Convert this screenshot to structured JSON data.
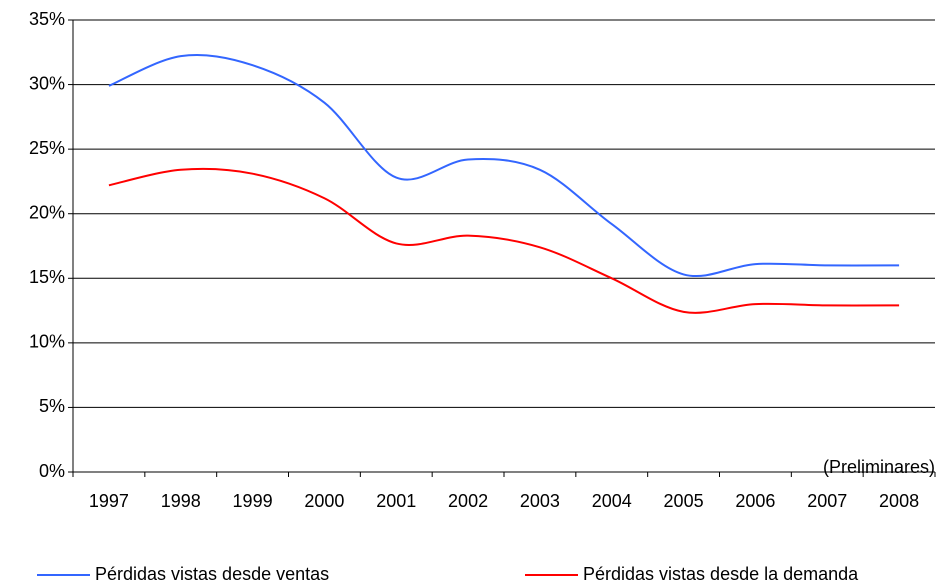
{
  "chart_data": {
    "type": "line",
    "categories": [
      "1997",
      "1998",
      "1999",
      "2000",
      "2001",
      "2002",
      "2003",
      "2004",
      "2005",
      "2006",
      "2007",
      "2008"
    ],
    "series": [
      {
        "name": "Pérdidas vistas desde ventas",
        "color": "#3366ff",
        "values": [
          29.9,
          32.2,
          31.5,
          28.6,
          22.8,
          24.2,
          23.4,
          19.2,
          15.3,
          16.1,
          16.0,
          16.0
        ]
      },
      {
        "name": "Pérdidas vistas desde la demanda",
        "color": "#ff0000",
        "values": [
          22.2,
          23.4,
          23.1,
          21.2,
          17.7,
          18.3,
          17.4,
          15.0,
          12.4,
          13.0,
          12.9,
          12.9
        ]
      }
    ],
    "ylim": [
      0,
      35
    ],
    "yticks": [
      {
        "value": 0,
        "label": "0%"
      },
      {
        "value": 5,
        "label": "5%"
      },
      {
        "value": 10,
        "label": "10%"
      },
      {
        "value": 15,
        "label": "15%"
      },
      {
        "value": 20,
        "label": "20%"
      },
      {
        "value": 25,
        "label": "25%"
      },
      {
        "value": 30,
        "label": "30%"
      },
      {
        "value": 35,
        "label": "35%"
      }
    ],
    "grid": true,
    "annotation": "(Preliminares)",
    "legend": "bottom"
  }
}
